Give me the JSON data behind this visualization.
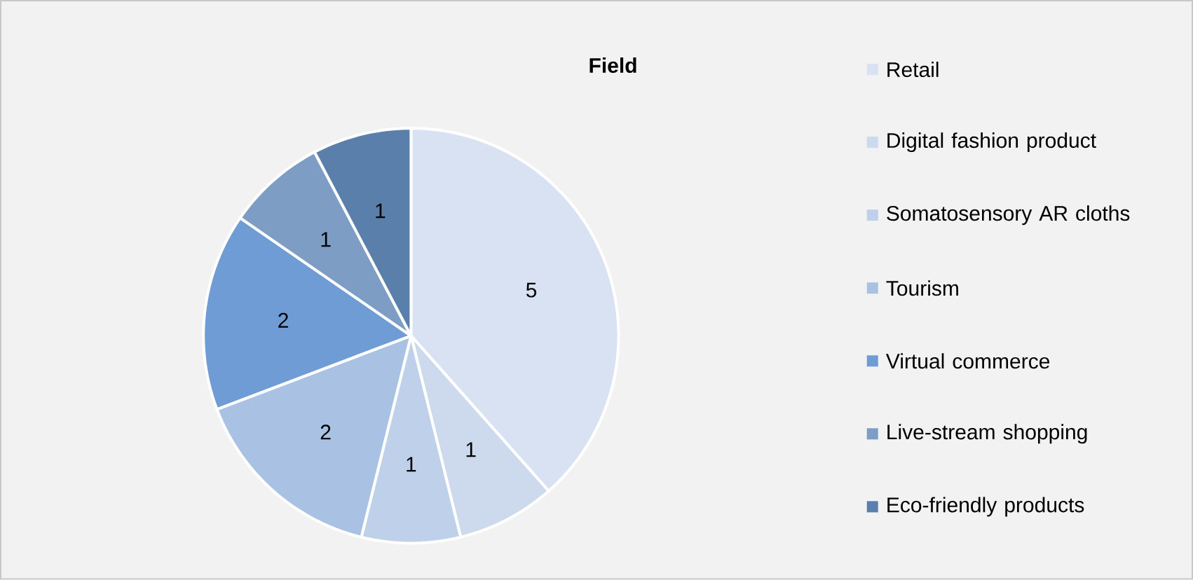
{
  "chart_data": {
    "type": "pie",
    "title": "Field",
    "categories": [
      "Retail",
      "Digital fashion product",
      "Somatosensory AR cloths",
      "Tourism",
      "Virtual commerce",
      "Live-stream shopping",
      "Eco-friendly products"
    ],
    "values": [
      5,
      1,
      1,
      2,
      2,
      1,
      1
    ],
    "colors": [
      "#d9e2f2",
      "#cddaee",
      "#bfd0ea",
      "#a9c1e3",
      "#6f9cd4",
      "#7d9dc5",
      "#5a7fab"
    ],
    "data_labels": true,
    "legend": "right"
  }
}
